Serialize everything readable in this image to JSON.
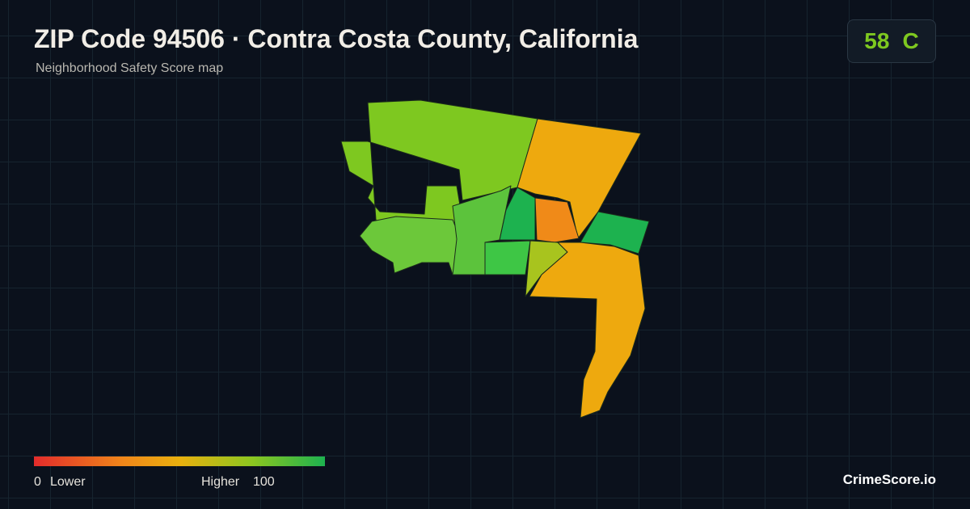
{
  "header": {
    "title": "ZIP Code 94506 · Contra Costa County, California",
    "subtitle": "Neighborhood Safety Score map"
  },
  "score": {
    "value": 58,
    "grade": "C"
  },
  "legend": {
    "min": 0,
    "min_label": "Lower",
    "max_label": "Higher",
    "max": 100
  },
  "brand": "CrimeScore.io"
}
